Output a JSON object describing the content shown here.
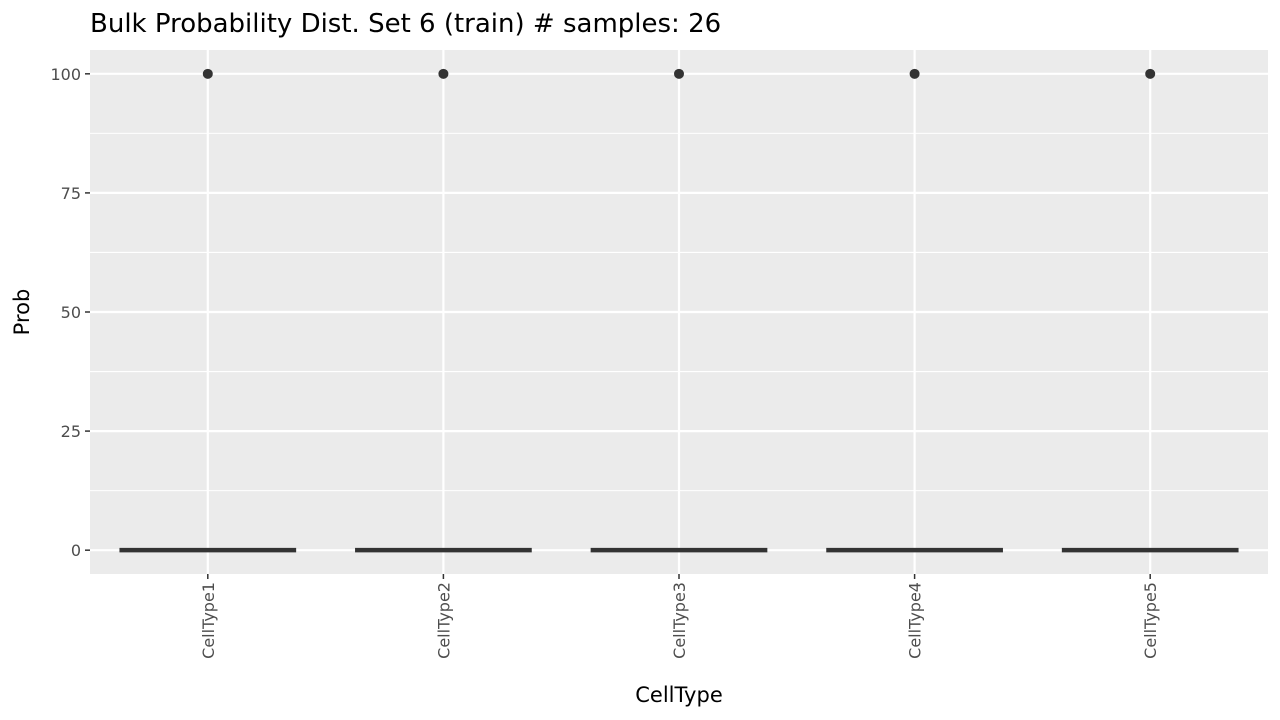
{
  "chart_data": {
    "type": "boxplot",
    "title": "Bulk Probability Dist. Set 6 (train) # samples: 26",
    "xlabel": "CellType",
    "ylabel": "Prob",
    "categories": [
      "CellType1",
      "CellType2",
      "CellType3",
      "CellType4",
      "CellType5"
    ],
    "boxes": [
      {
        "category": "CellType1",
        "min": 0,
        "q1": 0,
        "median": 0,
        "q3": 0,
        "max": 0,
        "outliers": [
          100
        ]
      },
      {
        "category": "CellType2",
        "min": 0,
        "q1": 0,
        "median": 0,
        "q3": 0,
        "max": 0,
        "outliers": [
          100
        ]
      },
      {
        "category": "CellType3",
        "min": 0,
        "q1": 0,
        "median": 0,
        "q3": 0,
        "max": 0,
        "outliers": [
          100
        ]
      },
      {
        "category": "CellType4",
        "min": 0,
        "q1": 0,
        "median": 0,
        "q3": 0,
        "max": 0,
        "outliers": [
          100
        ]
      },
      {
        "category": "CellType5",
        "min": 0,
        "q1": 0,
        "median": 0,
        "q3": 0,
        "max": 0,
        "outliers": [
          100
        ]
      }
    ],
    "ylim": [
      -5,
      105
    ],
    "yticks": [
      0,
      25,
      50,
      75,
      100
    ],
    "grid": true,
    "colors": {
      "panel_background": "#ebebeb",
      "grid": "#ffffff",
      "box": "#333333",
      "outlier": "#333333",
      "tick_label": "#4d4d4d",
      "tick_mark": "#333333"
    }
  }
}
